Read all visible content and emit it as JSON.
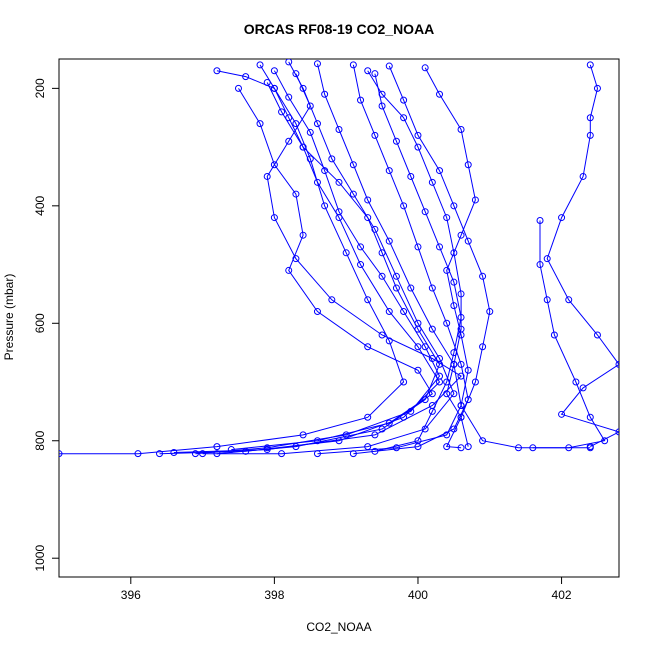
{
  "chart_data": {
    "type": "line",
    "title": "ORCAS RF08-19 CO2_NOAA",
    "xlabel": "CO2_NOAA",
    "ylabel": "Pressure (mbar)",
    "xlim": [
      395.0,
      402.8
    ],
    "ylim": [
      1032,
      150
    ],
    "y_reversed": true,
    "x_ticks": [
      396,
      398,
      400,
      402
    ],
    "y_ticks": [
      200,
      400,
      600,
      800,
      1000
    ],
    "grid": false,
    "legend": "none",
    "series_color": "#0000ff",
    "series": [
      {
        "values": [
          [
            397.2,
            170
          ],
          [
            397.6,
            180
          ],
          [
            398.0,
            200
          ],
          [
            398.3,
            260
          ],
          [
            398.5,
            320
          ],
          [
            398.7,
            400
          ],
          [
            399.0,
            480
          ],
          [
            399.3,
            560
          ],
          [
            399.6,
            630
          ],
          [
            399.8,
            700
          ],
          [
            399.3,
            760
          ],
          [
            398.4,
            790
          ],
          [
            397.2,
            810
          ],
          [
            396.1,
            822
          ],
          [
            395.0,
            822
          ]
        ]
      },
      {
        "values": [
          [
            397.8,
            160
          ],
          [
            398.0,
            200
          ],
          [
            398.2,
            250
          ],
          [
            398.4,
            300
          ],
          [
            398.6,
            360
          ],
          [
            398.9,
            420
          ],
          [
            399.2,
            500
          ],
          [
            399.6,
            580
          ],
          [
            400.0,
            640
          ],
          [
            400.3,
            700
          ],
          [
            399.8,
            760
          ],
          [
            398.9,
            800
          ],
          [
            397.6,
            818
          ],
          [
            396.4,
            822
          ]
        ]
      },
      {
        "values": [
          [
            398.2,
            155
          ],
          [
            398.4,
            200
          ],
          [
            398.6,
            260
          ],
          [
            398.8,
            320
          ],
          [
            399.1,
            380
          ],
          [
            399.4,
            440
          ],
          [
            399.7,
            520
          ],
          [
            400.0,
            600
          ],
          [
            400.3,
            660
          ],
          [
            400.5,
            720
          ],
          [
            400.1,
            780
          ],
          [
            399.3,
            810
          ],
          [
            398.1,
            822
          ],
          [
            397.0,
            822
          ]
        ]
      },
      {
        "values": [
          [
            398.6,
            158
          ],
          [
            398.7,
            210
          ],
          [
            398.9,
            270
          ],
          [
            399.1,
            330
          ],
          [
            399.3,
            390
          ],
          [
            399.6,
            460
          ],
          [
            399.9,
            540
          ],
          [
            400.2,
            610
          ],
          [
            400.5,
            670
          ],
          [
            400.6,
            740
          ],
          [
            400.4,
            790
          ],
          [
            399.7,
            812
          ],
          [
            398.6,
            822
          ]
        ]
      },
      {
        "values": [
          [
            399.1,
            160
          ],
          [
            399.2,
            220
          ],
          [
            399.4,
            280
          ],
          [
            399.6,
            340
          ],
          [
            399.8,
            400
          ],
          [
            400.0,
            470
          ],
          [
            400.2,
            540
          ],
          [
            400.4,
            600
          ],
          [
            400.6,
            670
          ],
          [
            400.7,
            730
          ],
          [
            400.5,
            780
          ],
          [
            400.0,
            810
          ],
          [
            399.1,
            822
          ]
        ]
      },
      {
        "values": [
          [
            399.6,
            162
          ],
          [
            399.8,
            220
          ],
          [
            400.0,
            280
          ],
          [
            400.3,
            340
          ],
          [
            400.5,
            400
          ],
          [
            400.7,
            460
          ],
          [
            400.9,
            520
          ],
          [
            401.0,
            580
          ],
          [
            400.9,
            640
          ],
          [
            400.8,
            700
          ],
          [
            400.6,
            760
          ],
          [
            400.4,
            810
          ],
          [
            400.6,
            812
          ]
        ]
      },
      {
        "values": [
          [
            398.3,
            175
          ],
          [
            398.5,
            230
          ],
          [
            398.2,
            290
          ],
          [
            397.9,
            350
          ],
          [
            398.0,
            420
          ],
          [
            398.3,
            490
          ],
          [
            398.8,
            560
          ],
          [
            399.5,
            620
          ],
          [
            400.2,
            660
          ],
          [
            400.6,
            690
          ],
          [
            400.2,
            740
          ],
          [
            399.4,
            790
          ],
          [
            397.9,
            815
          ],
          [
            396.6,
            820
          ]
        ]
      },
      {
        "values": [
          [
            397.9,
            190
          ],
          [
            398.1,
            240
          ],
          [
            398.4,
            300
          ],
          [
            398.9,
            360
          ],
          [
            399.3,
            420
          ],
          [
            399.5,
            480
          ],
          [
            399.7,
            540
          ],
          [
            400.0,
            610
          ],
          [
            400.3,
            670
          ],
          [
            400.1,
            730
          ],
          [
            399.5,
            780
          ],
          [
            398.3,
            810
          ],
          [
            397.2,
            822
          ]
        ]
      },
      {
        "values": [
          [
            400.1,
            165
          ],
          [
            400.3,
            210
          ],
          [
            400.6,
            270
          ],
          [
            400.7,
            330
          ],
          [
            400.8,
            390
          ],
          [
            400.6,
            450
          ],
          [
            400.4,
            510
          ],
          [
            400.5,
            570
          ],
          [
            400.6,
            620
          ],
          [
            400.7,
            680
          ],
          [
            400.6,
            740
          ],
          [
            400.9,
            800
          ],
          [
            401.4,
            812
          ],
          [
            402.4,
            812
          ]
        ]
      },
      {
        "values": [
          [
            401.7,
            425
          ],
          [
            401.7,
            500
          ],
          [
            401.8,
            560
          ],
          [
            401.9,
            620
          ],
          [
            402.2,
            700
          ],
          [
            402.4,
            760
          ],
          [
            402.6,
            800
          ],
          [
            402.1,
            812
          ],
          [
            401.6,
            812
          ]
        ]
      },
      {
        "values": [
          [
            402.4,
            160
          ],
          [
            402.5,
            200
          ],
          [
            402.4,
            250
          ],
          [
            402.4,
            280
          ],
          [
            402.3,
            350
          ],
          [
            402.0,
            420
          ],
          [
            401.8,
            490
          ],
          [
            402.1,
            560
          ],
          [
            402.5,
            620
          ],
          [
            402.8,
            670
          ],
          [
            402.3,
            710
          ],
          [
            402.0,
            755
          ],
          [
            402.8,
            785
          ],
          [
            402.4,
            810
          ]
        ]
      },
      {
        "values": [
          [
            399.4,
            175
          ],
          [
            399.5,
            230
          ],
          [
            399.7,
            290
          ],
          [
            399.9,
            350
          ],
          [
            400.1,
            410
          ],
          [
            400.3,
            470
          ],
          [
            400.5,
            530
          ],
          [
            400.6,
            590
          ],
          [
            400.5,
            650
          ],
          [
            400.4,
            700
          ],
          [
            400.2,
            750
          ],
          [
            400.0,
            800
          ],
          [
            399.4,
            818
          ]
        ]
      },
      {
        "values": [
          [
            398.0,
            170
          ],
          [
            398.2,
            215
          ],
          [
            398.5,
            275
          ],
          [
            398.7,
            340
          ],
          [
            398.9,
            410
          ],
          [
            399.2,
            470
          ],
          [
            399.5,
            520
          ],
          [
            399.8,
            580
          ],
          [
            400.1,
            640
          ],
          [
            400.3,
            690
          ],
          [
            399.9,
            750
          ],
          [
            399.0,
            790
          ],
          [
            397.9,
            812
          ],
          [
            396.9,
            822
          ]
        ]
      },
      {
        "values": [
          [
            397.5,
            200
          ],
          [
            397.8,
            260
          ],
          [
            398.0,
            330
          ],
          [
            398.3,
            380
          ],
          [
            398.4,
            450
          ],
          [
            398.2,
            510
          ],
          [
            398.6,
            580
          ],
          [
            399.3,
            640
          ],
          [
            400.0,
            680
          ],
          [
            400.2,
            720
          ],
          [
            399.6,
            770
          ],
          [
            398.6,
            800
          ],
          [
            397.4,
            815
          ]
        ]
      },
      {
        "values": [
          [
            399.3,
            170
          ],
          [
            399.5,
            210
          ],
          [
            399.8,
            250
          ],
          [
            400.0,
            300
          ],
          [
            400.2,
            360
          ],
          [
            400.4,
            420
          ],
          [
            400.5,
            480
          ],
          [
            400.6,
            550
          ],
          [
            400.6,
            610
          ],
          [
            400.5,
            670
          ],
          [
            400.4,
            720
          ],
          [
            400.6,
            760
          ],
          [
            400.7,
            810
          ]
        ]
      }
    ]
  }
}
